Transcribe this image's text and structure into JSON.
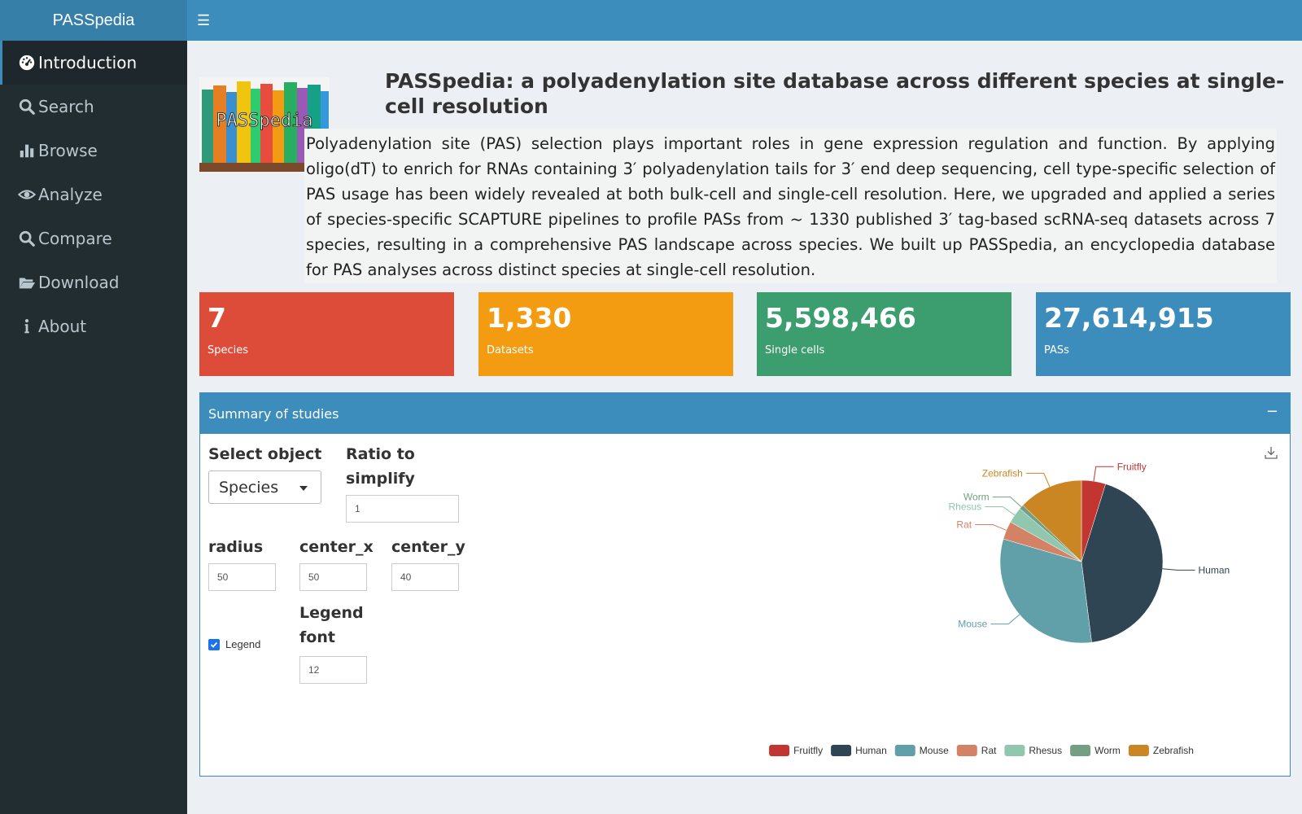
{
  "header": {
    "brand": "PASSpedia",
    "menu_icon": "hamburger-icon"
  },
  "sidebar": {
    "items": [
      {
        "label": "Introduction",
        "icon": "dashboard-icon",
        "active": true
      },
      {
        "label": "Search",
        "icon": "search-icon"
      },
      {
        "label": "Browse",
        "icon": "bar-chart-icon"
      },
      {
        "label": "Analyze",
        "icon": "eye-icon"
      },
      {
        "label": "Compare",
        "icon": "search-icon"
      },
      {
        "label": "Download",
        "icon": "folder-open-icon"
      },
      {
        "label": "About",
        "icon": "info-icon"
      }
    ]
  },
  "main": {
    "logo_text": "PASSpedia",
    "title": "PASSpedia: a polyadenylation site database across different species at single-cell resolution",
    "intro": "Polyadenylation site (PAS) selection plays important roles in gene expression regulation and function. By applying oligo(dT) to enrich for RNAs containing 3′ polyadenylation tails for 3′ end deep sequencing, cell type-specific selection of PAS usage has been widely revealed at both bulk-cell and single-cell resolution. Here, we upgraded and applied a series of species-specific SCAPTURE pipelines to profile PASs from ~ 1330 published 3′ tag-based scRNA-seq datasets across 7 species, resulting in a comprehensive PAS landscape across species. We built up PASSpedia, an encyclopedia database for PAS analyses across distinct species at single-cell resolution.",
    "stats": [
      {
        "value": "7",
        "label": "Species",
        "color": "#dd4b39"
      },
      {
        "value": "1,330",
        "label": "Datasets",
        "color": "#f39c12"
      },
      {
        "value": "5,598,466",
        "label": "Single cells",
        "color": "#3c9e6f"
      },
      {
        "value": "27,614,915",
        "label": "PASs",
        "color": "#3c8dbc"
      }
    ]
  },
  "summary": {
    "title": "Summary of studies",
    "collapse": "−",
    "select_object_label": "Select object",
    "select_object_value": "Species",
    "ratio_label_1": "Ratio to",
    "ratio_label_2": "simplify",
    "ratio_value": "1",
    "radius_label": "radius",
    "radius_value": "50",
    "center_x_label": "center_x",
    "center_x_value": "50",
    "center_y_label": "center_y",
    "center_y_value": "40",
    "legend_label": "Legend",
    "legend_checked": true,
    "legend_font_label_1": "Legend",
    "legend_font_label_2": "font",
    "legend_font_value": "12"
  },
  "chart_data": {
    "type": "pie",
    "series": [
      {
        "name": "Fruitfly",
        "value": 4.8,
        "color": "#c23531"
      },
      {
        "name": "Human",
        "value": 43.2,
        "color": "#2f4554"
      },
      {
        "name": "Mouse",
        "value": 31.5,
        "color": "#61a0a8"
      },
      {
        "name": "Rat",
        "value": 3.6,
        "color": "#d48265"
      },
      {
        "name": "Rhesus",
        "value": 3.2,
        "color": "#91c7ae"
      },
      {
        "name": "Worm",
        "value": 0.9,
        "color": "#749f83"
      },
      {
        "name": "Zebrafish",
        "value": 12.8,
        "color": "#ca8622"
      }
    ],
    "legend": "bottom"
  }
}
